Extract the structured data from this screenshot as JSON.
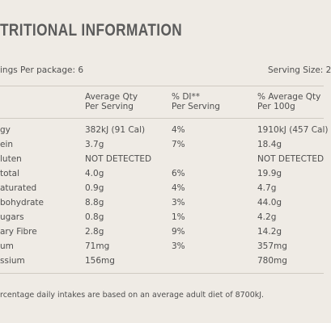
{
  "header": {
    "title": "TRITIONAL INFORMATION",
    "servings": "ings Per package: 6",
    "serving_size": "Serving Size: 2"
  },
  "table": {
    "columns": [
      [
        "Average Qty",
        "Per Serving"
      ],
      [
        "% DI**",
        "Per Serving"
      ],
      [
        "% Average Qty",
        "Per 100g"
      ]
    ],
    "rows": [
      [
        "gy",
        "382kJ (91 Cal)",
        "4%",
        "1910kJ (457 Cal)"
      ],
      [
        "ein",
        "3.7g",
        "7%",
        "18.4g"
      ],
      [
        "luten",
        "NOT DETECTED",
        "",
        "NOT DETECTED"
      ],
      [
        "total",
        "4.0g",
        "6%",
        "19.9g"
      ],
      [
        "aturated",
        "0.9g",
        "4%",
        "4.7g"
      ],
      [
        "bohydrate",
        "8.8g",
        "3%",
        "44.0g"
      ],
      [
        "ugars",
        "0.8g",
        "1%",
        "4.2g"
      ],
      [
        "ary Fibre",
        "2.8g",
        "9%",
        "14.2g"
      ],
      [
        "um",
        "71mg",
        "3%",
        "357mg"
      ],
      [
        "ssium",
        "156mg",
        "",
        "780mg"
      ]
    ]
  },
  "footnote": "rcentage daily intakes are based on an average adult diet of 8700kJ."
}
